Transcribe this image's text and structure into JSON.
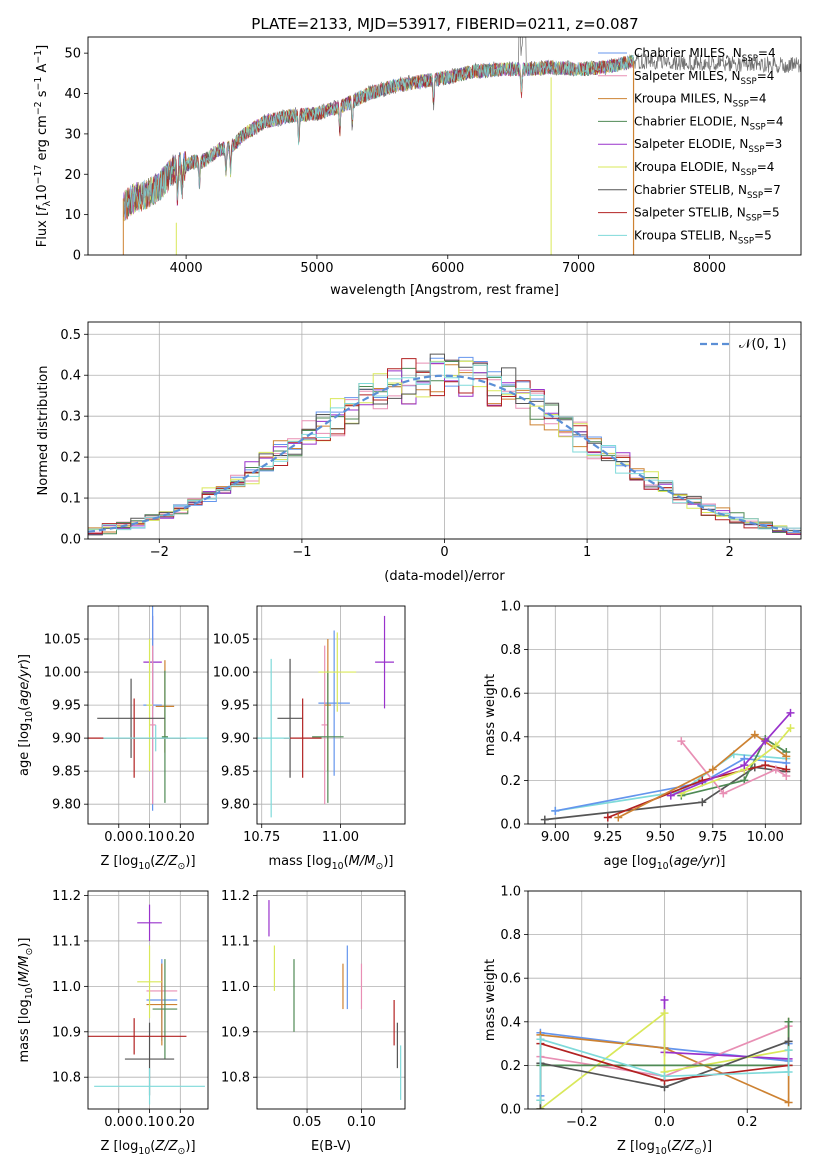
{
  "figure": {
    "title": "PLATE=2133, MJD=53917, FIBERID=0211, z=0.087"
  },
  "chart_data": [
    {
      "id": "spectrum",
      "type": "line",
      "xlabel": "wavelength [Angstrom, rest frame]",
      "ylabel": "Flux [f_λ 10^-17 erg cm^-2 s^-1 A^-1]",
      "xlim": [
        3250,
        8700
      ],
      "ylim": [
        0,
        54
      ],
      "xticks": [
        4000,
        5000,
        6000,
        7000,
        8000
      ],
      "yticks": [
        0,
        10,
        20,
        30,
        40,
        50
      ],
      "grid": false,
      "legend_position": "top-right",
      "continuum": {
        "x": [
          3520,
          3600,
          3700,
          3800,
          3900,
          3980,
          4050,
          4150,
          4250,
          4350,
          4450,
          4600,
          4800,
          5000,
          5200,
          5400,
          5600,
          5800,
          6000,
          6200,
          6400,
          6600,
          6800,
          7000,
          7200,
          7420
        ],
        "y": [
          12,
          14,
          15,
          17,
          21,
          22,
          23,
          23.5,
          26,
          27,
          30,
          33,
          34.5,
          35,
          37,
          40,
          42,
          43,
          44,
          45.5,
          46,
          46,
          46.5,
          46,
          46.5,
          48
        ]
      },
      "series": [
        {
          "name": "Chabrier MILES, N_SSP=4",
          "color": "#6495ed"
        },
        {
          "name": "Salpeter MILES, N_SSP=4",
          "color": "#e88fb4"
        },
        {
          "name": "Kroupa MILES, N_SSP=4",
          "color": "#cd8232"
        },
        {
          "name": "Chabrier ELODIE, N_SSP=4",
          "color": "#4f8a55"
        },
        {
          "name": "Salpeter ELODIE, N_SSP=3",
          "color": "#9932cc"
        },
        {
          "name": "Kroupa ELODIE, N_SSP=4",
          "color": "#d9e85a"
        },
        {
          "name": "Chabrier STELIB, N_SSP=7",
          "color": "#555555"
        },
        {
          "name": "Salpeter STELIB, N_SSP=5",
          "color": "#b22222"
        },
        {
          "name": "Kroupa STELIB, N_SSP=5",
          "color": "#7fdada"
        }
      ],
      "observed_color": "#707070",
      "observed_extends_to": 8700
    },
    {
      "id": "residuals",
      "type": "line",
      "xlabel": "(data-model)/error",
      "ylabel": "Normed distribution",
      "xlim": [
        -2.5,
        2.5
      ],
      "ylim": [
        0,
        0.53
      ],
      "xticks": [
        -2,
        -1,
        0,
        1,
        2
      ],
      "yticks": [
        0.0,
        0.1,
        0.2,
        0.3,
        0.4,
        0.5
      ],
      "grid": true,
      "legend_position": "top-right",
      "gaussian_label": "𝒩(0, 1)",
      "gaussian_color": "#5b8fd6",
      "bin_width": 0.1
    },
    {
      "id": "age-vs-Z",
      "type": "scatter",
      "xlabel": "Z [log10(Z/Z⊙)]",
      "ylabel": "age  [log10(age/yr)]",
      "xlim": [
        -0.1,
        0.29
      ],
      "ylim": [
        9.77,
        10.1
      ],
      "xticks": [
        0.0,
        0.1,
        0.2
      ],
      "yticks": [
        9.8,
        9.85,
        9.9,
        9.95,
        10.0,
        10.05
      ],
      "grid": true,
      "points": [
        {
          "x": 0.11,
          "y": 10.015,
          "ex": 0.03,
          "ey": 0.07,
          "color": "#9932cc"
        },
        {
          "x": 0.11,
          "y": 9.95,
          "ex": 0.03,
          "ey": 0.16,
          "color": "#6495ed"
        },
        {
          "x": 0.11,
          "y": 9.92,
          "ex": 0.01,
          "ey": 0.12,
          "color": "#e88fb4"
        },
        {
          "x": 0.15,
          "y": 9.948,
          "ex": 0.03,
          "ey": 0.07,
          "color": "#cd8232"
        },
        {
          "x": 0.15,
          "y": 9.902,
          "ex": 0.01,
          "ey": 0.1,
          "color": "#4f8a55"
        },
        {
          "x": 0.1,
          "y": 9.95,
          "ex": 0.01,
          "ey": 0.1,
          "color": "#d9e85a"
        },
        {
          "x": 0.04,
          "y": 9.93,
          "ex": 0.11,
          "ey": 0.06,
          "color": "#555555"
        },
        {
          "x": 0.05,
          "y": 9.9,
          "ex": 0.17,
          "ey": 0.06,
          "color": "#b22222"
        },
        {
          "x": 0.12,
          "y": 9.9,
          "ex": 0.17,
          "ey": 0.02,
          "color": "#7fdada"
        }
      ]
    },
    {
      "id": "age-vs-mass",
      "type": "scatter",
      "xlabel": "mass [log10(M/M⊙)]",
      "ylabel": "",
      "xlim": [
        10.735,
        11.205
      ],
      "ylim": [
        9.77,
        10.1
      ],
      "xticks": [
        10.75,
        11.0
      ],
      "yticks": [
        9.8,
        9.85,
        9.9,
        9.95,
        10.0,
        10.05
      ],
      "grid": true,
      "points": [
        {
          "x": 11.14,
          "y": 10.015,
          "ex": 0.03,
          "ey": 0.07,
          "color": "#9932cc"
        },
        {
          "x": 10.98,
          "y": 9.953,
          "ex": 0.05,
          "ey": 0.11,
          "color": "#6495ed"
        },
        {
          "x": 10.95,
          "y": 9.92,
          "ex": 0.01,
          "ey": 0.12,
          "color": "#e88fb4"
        },
        {
          "x": 10.96,
          "y": 9.95,
          "ex": 0.01,
          "ey": 0.1,
          "color": "#cd8232"
        },
        {
          "x": 10.96,
          "y": 9.902,
          "ex": 0.05,
          "ey": 0.1,
          "color": "#4f8a55"
        },
        {
          "x": 10.99,
          "y": 10.0,
          "ex": 0.06,
          "ey": 0.06,
          "color": "#d9e85a"
        },
        {
          "x": 10.84,
          "y": 9.93,
          "ex": 0.04,
          "ey": 0.09,
          "color": "#555555"
        },
        {
          "x": 10.88,
          "y": 9.9,
          "ex": 0.06,
          "ey": 0.06,
          "color": "#b22222"
        },
        {
          "x": 10.78,
          "y": 9.9,
          "ex": 0.06,
          "ey": 0.12,
          "color": "#7fdada"
        }
      ]
    },
    {
      "id": "massweight-vs-age",
      "type": "line",
      "xlabel": "age  [log10(age/yr)]",
      "ylabel": "mass weight",
      "xlim": [
        8.87,
        10.17
      ],
      "ylim": [
        0.0,
        1.0
      ],
      "xticks": [
        9.0,
        9.25,
        9.5,
        9.75,
        10.0
      ],
      "yticks": [
        0.0,
        0.2,
        0.4,
        0.6,
        0.8,
        1.0
      ],
      "grid": true,
      "series": [
        {
          "color": "#7fdada",
          "x": [
            9.0,
            9.6,
            9.85,
            10.1
          ],
          "y": [
            0.06,
            0.15,
            0.32,
            0.3
          ]
        },
        {
          "color": "#6495ed",
          "x": [
            9.0,
            9.7,
            9.9,
            10.1
          ],
          "y": [
            0.06,
            0.19,
            0.3,
            0.28
          ]
        },
        {
          "color": "#555555",
          "x": [
            8.95,
            9.7,
            9.95,
            10.1
          ],
          "y": [
            0.02,
            0.1,
            0.26,
            0.24
          ]
        },
        {
          "color": "#4f8a55",
          "x": [
            9.6,
            9.9,
            10.0,
            10.1
          ],
          "y": [
            0.13,
            0.2,
            0.39,
            0.33
          ]
        },
        {
          "color": "#b22222",
          "x": [
            9.25,
            9.7,
            10.0,
            10.1
          ],
          "y": [
            0.03,
            0.2,
            0.27,
            0.25
          ]
        },
        {
          "color": "#e88fb4",
          "x": [
            9.6,
            9.8,
            10.05,
            10.1
          ],
          "y": [
            0.38,
            0.14,
            0.25,
            0.22
          ]
        },
        {
          "color": "#cd8232",
          "x": [
            9.3,
            9.75,
            9.95,
            10.1
          ],
          "y": [
            0.03,
            0.25,
            0.41,
            0.31
          ]
        },
        {
          "color": "#d9e85a",
          "x": [
            9.6,
            9.9,
            10.05,
            10.12
          ],
          "y": [
            0.14,
            0.25,
            0.36,
            0.44
          ]
        },
        {
          "color": "#9932cc",
          "x": [
            9.55,
            9.9,
            10.0,
            10.12
          ],
          "y": [
            0.13,
            0.27,
            0.38,
            0.51
          ]
        }
      ]
    },
    {
      "id": "mass-vs-Z",
      "type": "scatter",
      "xlabel": "Z [log10(Z/Z⊙)]",
      "ylabel": "mass [log10(M/M⊙)]",
      "xlim": [
        -0.1,
        0.29
      ],
      "ylim": [
        10.73,
        11.21
      ],
      "xticks": [
        0.0,
        0.1,
        0.2
      ],
      "yticks": [
        10.8,
        10.9,
        11.0,
        11.1,
        11.2
      ],
      "grid": true,
      "points": [
        {
          "x": 0.1,
          "y": 11.14,
          "ex": 0.04,
          "ey": 0.04,
          "color": "#9932cc"
        },
        {
          "x": 0.14,
          "y": 10.97,
          "ex": 0.05,
          "ey": 0.09,
          "color": "#6495ed"
        },
        {
          "x": 0.14,
          "y": 10.99,
          "ex": 0.05,
          "ey": 0.06,
          "color": "#e88fb4"
        },
        {
          "x": 0.14,
          "y": 10.96,
          "ex": 0.05,
          "ey": 0.09,
          "color": "#cd8232"
        },
        {
          "x": 0.15,
          "y": 10.95,
          "ex": 0.04,
          "ey": 0.11,
          "color": "#4f8a55"
        },
        {
          "x": 0.1,
          "y": 11.01,
          "ex": 0.04,
          "ey": 0.08,
          "color": "#d9e85a"
        },
        {
          "x": 0.1,
          "y": 10.84,
          "ex": 0.08,
          "ey": 0.08,
          "color": "#555555"
        },
        {
          "x": 0.05,
          "y": 10.89,
          "ex": 0.17,
          "ey": 0.04,
          "color": "#b22222"
        },
        {
          "x": 0.1,
          "y": 10.78,
          "ex": 0.18,
          "ey": 0.04,
          "color": "#7fdada"
        }
      ]
    },
    {
      "id": "mass-vs-EBV",
      "type": "scatter",
      "xlabel": "E(B-V)",
      "ylabel": "",
      "xlim": [
        0.004,
        0.14
      ],
      "ylim": [
        10.73,
        11.21
      ],
      "xticks": [
        0.05,
        0.1
      ],
      "yticks": [
        10.8,
        10.9,
        11.0,
        11.1,
        11.2
      ],
      "grid": true,
      "points": [
        {
          "x": 0.015,
          "y": 11.15,
          "ex": 0.0,
          "ey": 0.04,
          "color": "#9932cc"
        },
        {
          "x": 0.02,
          "y": 11.04,
          "ex": 0.0,
          "ey": 0.05,
          "color": "#d9e85a"
        },
        {
          "x": 0.038,
          "y": 10.98,
          "ex": 0.0,
          "ey": 0.08,
          "color": "#4f8a55"
        },
        {
          "x": 0.083,
          "y": 11.0,
          "ex": 0.0,
          "ey": 0.05,
          "color": "#cd8232"
        },
        {
          "x": 0.087,
          "y": 11.02,
          "ex": 0.0,
          "ey": 0.07,
          "color": "#6495ed"
        },
        {
          "x": 0.1,
          "y": 11.0,
          "ex": 0.0,
          "ey": 0.05,
          "color": "#e88fb4"
        },
        {
          "x": 0.13,
          "y": 10.92,
          "ex": 0.0,
          "ey": 0.05,
          "color": "#b22222"
        },
        {
          "x": 0.133,
          "y": 10.87,
          "ex": 0.0,
          "ey": 0.05,
          "color": "#555555"
        },
        {
          "x": 0.136,
          "y": 10.81,
          "ex": 0.0,
          "ey": 0.06,
          "color": "#7fdada"
        }
      ]
    },
    {
      "id": "massweight-vs-Z",
      "type": "line",
      "xlabel": "Z [log10(Z/Z⊙)]",
      "ylabel": "mass weight",
      "xlim": [
        -0.33,
        0.33
      ],
      "ylim": [
        0.0,
        1.0
      ],
      "xticks": [
        -0.2,
        0.0,
        0.2
      ],
      "yticks": [
        0.0,
        0.2,
        0.4,
        0.6,
        0.8,
        1.0
      ],
      "grid": true,
      "series": [
        {
          "color": "#6495ed",
          "x": [
            -0.3,
            -0.3,
            0.0,
            0.3,
            0.3
          ],
          "y": [
            0.06,
            0.35,
            0.28,
            0.22,
            0.3
          ]
        },
        {
          "color": "#cd8232",
          "x": [
            -0.3,
            -0.3,
            0.0,
            0.3,
            0.3
          ],
          "y": [
            0.04,
            0.34,
            0.28,
            0.03,
            0.4
          ]
        },
        {
          "color": "#e88fb4",
          "x": [
            -0.3,
            0.0,
            0.3
          ],
          "y": [
            0.24,
            0.15,
            0.38
          ]
        },
        {
          "color": "#9932cc",
          "x": [
            0.0,
            0.0,
            0.3
          ],
          "y": [
            0.5,
            0.26,
            0.23
          ]
        },
        {
          "color": "#d9e85a",
          "x": [
            -0.3,
            0.0,
            0.0,
            0.3
          ],
          "y": [
            0.0,
            0.44,
            0.17,
            0.27
          ]
        },
        {
          "color": "#4f8a55",
          "x": [
            -0.3,
            0.3,
            0.3
          ],
          "y": [
            0.2,
            0.2,
            0.4
          ]
        },
        {
          "color": "#555555",
          "x": [
            -0.3,
            -0.3,
            0.0,
            0.3
          ],
          "y": [
            0.0,
            0.21,
            0.1,
            0.31
          ]
        },
        {
          "color": "#b22222",
          "x": [
            -0.3,
            0.0,
            0.3
          ],
          "y": [
            0.3,
            0.13,
            0.2
          ]
        },
        {
          "color": "#7fdada",
          "x": [
            -0.3,
            -0.3,
            0.0,
            0.3,
            0.3
          ],
          "y": [
            0.04,
            0.32,
            0.15,
            0.17,
            0.27
          ]
        }
      ]
    }
  ]
}
